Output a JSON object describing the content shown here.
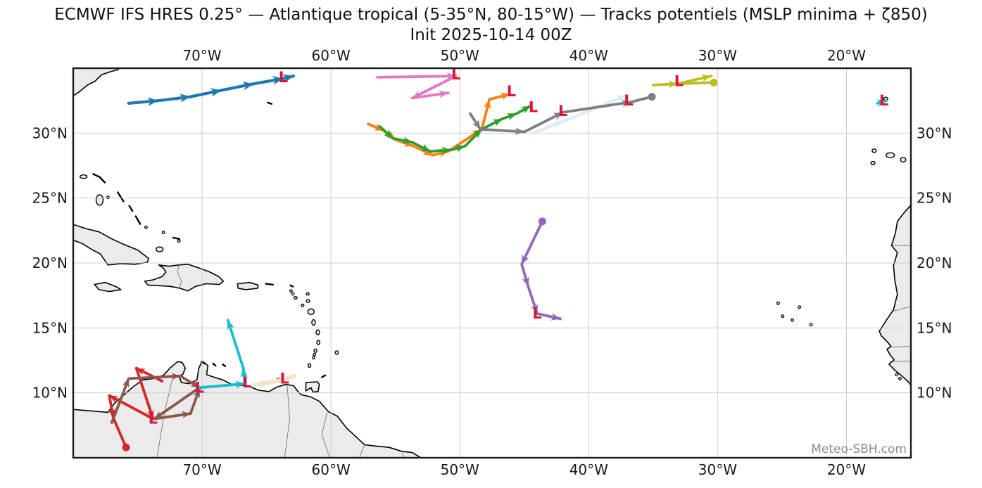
{
  "title": "ECMWF IFS HRES 0.25° — Atlantique tropical (5-35°N, 80-15°W) — Tracks potentiels (MSLP minima + ζ850)",
  "subtitle": "Init 2025-10-14 00Z",
  "watermark": "Meteo-SBH.com",
  "axes": {
    "extent": {
      "lon": [
        -80,
        -15
      ],
      "lat": [
        5,
        35
      ]
    },
    "lon_ticks": [
      {
        "value": -70,
        "label": "70°W"
      },
      {
        "value": -60,
        "label": "60°W"
      },
      {
        "value": -50,
        "label": "50°W"
      },
      {
        "value": -40,
        "label": "40°W"
      },
      {
        "value": -30,
        "label": "30°W"
      },
      {
        "value": -20,
        "label": "20°W"
      }
    ],
    "lat_ticks": [
      {
        "value": 30,
        "label": "30°N"
      },
      {
        "value": 25,
        "label": "25°N"
      },
      {
        "value": 20,
        "label": "20°N"
      },
      {
        "value": 15,
        "label": "15°N"
      },
      {
        "value": 10,
        "label": "10°N"
      }
    ]
  },
  "colors": {
    "low_marker": "#dc143c",
    "land": "#ebebeb",
    "coast": "#000000",
    "grid": "#cccccc",
    "frame": "#1a1a1a"
  },
  "chart_data": {
    "type": "track-map",
    "description": "Potential tropical cyclone tracks (MSLP minima + 850hPa vorticity) plotted over the tropical Atlantic; red L glyphs mark MSLP minima, arrows show motion, dots mark track endpoints.",
    "low_glyph": "L",
    "tracks": [
      {
        "name": "paleblue",
        "color": "#dfecf7",
        "width": 4.5,
        "arrow": 13,
        "segments": [
          {
            "points": [
              [
                -44.3,
                30.0
              ],
              [
                -42.0,
                30.9
              ],
              [
                -37.1,
                32.9
              ]
            ],
            "end": "arrow"
          }
        ],
        "lows": []
      },
      {
        "name": "wheat",
        "color": "#f5e3c9",
        "width": 6,
        "arrow": 14,
        "segments": [
          {
            "points": [
              [
                -62.8,
                11.3
              ],
              [
                -64.2,
                10.9
              ],
              [
                -65.9,
                10.6
              ]
            ],
            "end": "arrow"
          }
        ],
        "lows": [
          [
            -63.6,
            11.1
          ]
        ]
      },
      {
        "name": "blue",
        "color": "#1f77b4",
        "width": 4.2,
        "arrow": 15,
        "segments": [
          {
            "points": [
              [
                -75.7,
                32.3
              ],
              [
                -73.4,
                32.5
              ],
              [
                -70.9,
                32.8
              ],
              [
                -68.5,
                33.3
              ],
              [
                -66.0,
                33.8
              ],
              [
                -63.7,
                34.2
              ],
              [
                -62.9,
                34.4
              ]
            ],
            "end": "arrow"
          }
        ],
        "lows": [
          [
            -63.7,
            34.3
          ]
        ]
      },
      {
        "name": "pink",
        "color": "#e377c2",
        "width": 3.8,
        "arrow": 13,
        "segments": [
          {
            "points": [
              [
                -56.4,
                34.3
              ],
              [
                -50.3,
                34.4
              ],
              [
                -53.7,
                32.7
              ],
              [
                -50.9,
                33.1
              ]
            ],
            "end": "arrow"
          }
        ],
        "lows": [
          [
            -50.3,
            34.5
          ]
        ]
      },
      {
        "name": "orange",
        "color": "#ff7f0e",
        "width": 3.8,
        "arrow": 13,
        "segments": [
          {
            "points": [
              [
                -57.1,
                30.7
              ],
              [
                -55.9,
                30.2
              ],
              [
                -55.0,
                29.5
              ],
              [
                -53.6,
                29.0
              ],
              [
                -52.1,
                28.3
              ],
              [
                -50.9,
                28.6
              ],
              [
                -48.3,
                30.3
              ],
              [
                -47.7,
                32.6
              ],
              [
                -46.1,
                33.0
              ]
            ],
            "end": "arrow"
          }
        ],
        "lows": [
          [
            -46.0,
            33.2
          ]
        ]
      },
      {
        "name": "green",
        "color": "#2ca02c",
        "width": 3.8,
        "arrow": 13,
        "segments": [
          {
            "points": [
              [
                -56.2,
                30.5
              ],
              [
                -55.2,
                29.6
              ],
              [
                -53.7,
                29.3
              ],
              [
                -52.3,
                28.6
              ],
              [
                -50.7,
                28.7
              ],
              [
                -49.6,
                29.0
              ],
              [
                -48.3,
                30.3
              ],
              [
                -46.7,
                31.1
              ],
              [
                -45.6,
                31.5
              ],
              [
                -44.5,
                32.1
              ]
            ],
            "end": "arrow"
          }
        ],
        "lows": [
          [
            -44.3,
            32.0
          ]
        ]
      },
      {
        "name": "gray",
        "color": "#7f7f7f",
        "width": 3.8,
        "arrow": 13,
        "segments": [
          {
            "points": [
              [
                -49.2,
                31.5
              ],
              [
                -48.4,
                30.3
              ],
              [
                -45.0,
                30.1
              ],
              [
                -42.0,
                31.6
              ],
              [
                -36.7,
                32.4
              ],
              [
                -35.1,
                32.8
              ]
            ],
            "end": "dot"
          }
        ],
        "lows": [
          [
            -42.0,
            31.7
          ],
          [
            -36.9,
            32.5
          ]
        ]
      },
      {
        "name": "olive",
        "color": "#bcbd22",
        "width": 3.8,
        "arrow": 13,
        "segments": [
          {
            "points": [
              [
                -35.0,
                33.7
              ],
              [
                -33.1,
                33.8
              ],
              [
                -30.5,
                34.4
              ]
            ],
            "end": "arrow"
          },
          {
            "points": [
              [
                -33.1,
                33.8
              ],
              [
                -30.3,
                33.9
              ]
            ],
            "end": "dot"
          }
        ],
        "lows": [
          [
            -33.0,
            34.0
          ]
        ]
      },
      {
        "name": "purple",
        "color": "#9467bd",
        "width": 3.8,
        "arrow": 13,
        "segments": [
          {
            "points": [
              [
                -43.6,
                23.2
              ],
              [
                -45.2,
                19.9
              ],
              [
                -44.7,
                18.2
              ],
              [
                -44.0,
                16.1
              ],
              [
                -42.2,
                15.7
              ]
            ],
            "start": "dot",
            "end": "arrow"
          }
        ],
        "lows": [
          [
            -44.0,
            16.1
          ]
        ]
      },
      {
        "name": "red",
        "color": "#d62728",
        "width": 3.8,
        "arrow": 12,
        "segments": [
          {
            "points": [
              [
                -73.1,
                10.9
              ],
              [
                -75.1,
                11.9
              ],
              [
                -73.8,
                8.0
              ],
              [
                -77.2,
                9.8
              ],
              [
                -76.9,
                8.1
              ],
              [
                -75.9,
                5.8
              ]
            ],
            "end": "dot"
          }
        ],
        "lows": [
          [
            -73.8,
            8.0
          ]
        ]
      },
      {
        "name": "brown",
        "color": "#8c564b",
        "width": 3.8,
        "arrow": 12,
        "segments": [
          {
            "points": [
              [
                -77.0,
                7.7
              ],
              [
                -75.7,
                11.1
              ],
              [
                -71.7,
                11.3
              ],
              [
                -70.2,
                10.4
              ],
              [
                -73.7,
                8.0
              ],
              [
                -70.9,
                8.4
              ],
              [
                -70.2,
                10.3
              ]
            ],
            "end": "arrow"
          }
        ],
        "lows": []
      },
      {
        "name": "cyan",
        "color": "#17becf",
        "width": 3.8,
        "arrow": 13,
        "segments": [
          {
            "points": [
              [
                -70.2,
                10.4
              ],
              [
                -66.7,
                10.7
              ],
              [
                -66.8,
                11.9
              ],
              [
                -68.0,
                15.6
              ]
            ],
            "end": "arrow"
          },
          {
            "points": [
              [
                -17.6,
                32.3
              ],
              [
                -16.9,
                32.5
              ]
            ],
            "end": "arrow"
          }
        ],
        "lows": [
          [
            -70.2,
            10.4
          ],
          [
            -66.5,
            10.8
          ],
          [
            -17.1,
            32.5
          ]
        ]
      }
    ]
  }
}
